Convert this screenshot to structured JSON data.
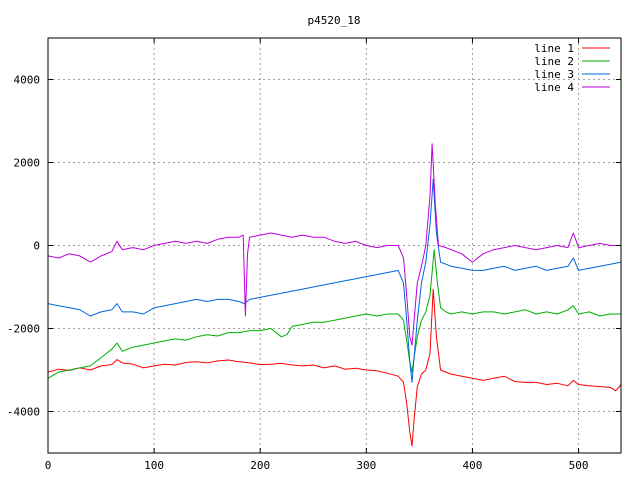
{
  "chart_data": {
    "type": "line",
    "title": "p4520_18",
    "xlabel": "",
    "ylabel": "",
    "xlim": [
      0,
      540
    ],
    "ylim": [
      -5000,
      5000
    ],
    "x_ticks": [
      0,
      100,
      200,
      300,
      400,
      500
    ],
    "y_ticks": [
      -4000,
      -2000,
      0,
      2000,
      4000
    ],
    "grid": true,
    "legend_position": "top-right",
    "series": [
      {
        "name": "line 1",
        "color": "#ff0000",
        "points": [
          [
            0,
            -3050
          ],
          [
            10,
            -2980
          ],
          [
            20,
            -3010
          ],
          [
            30,
            -2950
          ],
          [
            40,
            -3000
          ],
          [
            50,
            -2900
          ],
          [
            60,
            -2870
          ],
          [
            65,
            -2750
          ],
          [
            70,
            -2830
          ],
          [
            80,
            -2860
          ],
          [
            90,
            -2950
          ],
          [
            100,
            -2900
          ],
          [
            110,
            -2860
          ],
          [
            120,
            -2880
          ],
          [
            130,
            -2820
          ],
          [
            140,
            -2800
          ],
          [
            150,
            -2830
          ],
          [
            160,
            -2780
          ],
          [
            170,
            -2760
          ],
          [
            180,
            -2800
          ],
          [
            190,
            -2830
          ],
          [
            200,
            -2870
          ],
          [
            210,
            -2860
          ],
          [
            220,
            -2840
          ],
          [
            230,
            -2880
          ],
          [
            240,
            -2900
          ],
          [
            250,
            -2880
          ],
          [
            260,
            -2950
          ],
          [
            270,
            -2900
          ],
          [
            280,
            -2980
          ],
          [
            290,
            -2960
          ],
          [
            300,
            -3000
          ],
          [
            310,
            -3020
          ],
          [
            320,
            -3080
          ],
          [
            330,
            -3150
          ],
          [
            335,
            -3300
          ],
          [
            338,
            -3800
          ],
          [
            341,
            -4500
          ],
          [
            343,
            -4830
          ],
          [
            345,
            -4200
          ],
          [
            348,
            -3400
          ],
          [
            352,
            -3100
          ],
          [
            356,
            -3000
          ],
          [
            360,
            -2600
          ],
          [
            363,
            -1050
          ],
          [
            366,
            -2200
          ],
          [
            370,
            -3000
          ],
          [
            375,
            -3050
          ],
          [
            380,
            -3100
          ],
          [
            390,
            -3150
          ],
          [
            400,
            -3200
          ],
          [
            410,
            -3250
          ],
          [
            420,
            -3200
          ],
          [
            430,
            -3150
          ],
          [
            440,
            -3280
          ],
          [
            450,
            -3300
          ],
          [
            460,
            -3300
          ],
          [
            470,
            -3350
          ],
          [
            480,
            -3320
          ],
          [
            490,
            -3380
          ],
          [
            495,
            -3250
          ],
          [
            500,
            -3350
          ],
          [
            510,
            -3380
          ],
          [
            520,
            -3400
          ],
          [
            530,
            -3420
          ],
          [
            535,
            -3500
          ],
          [
            540,
            -3350
          ]
        ]
      },
      {
        "name": "line 2",
        "color": "#00b000",
        "points": [
          [
            0,
            -3200
          ],
          [
            10,
            -3050
          ],
          [
            20,
            -3000
          ],
          [
            30,
            -2950
          ],
          [
            40,
            -2900
          ],
          [
            50,
            -2700
          ],
          [
            60,
            -2500
          ],
          [
            65,
            -2350
          ],
          [
            70,
            -2550
          ],
          [
            80,
            -2450
          ],
          [
            90,
            -2400
          ],
          [
            100,
            -2350
          ],
          [
            110,
            -2300
          ],
          [
            120,
            -2250
          ],
          [
            130,
            -2280
          ],
          [
            140,
            -2200
          ],
          [
            150,
            -2150
          ],
          [
            160,
            -2180
          ],
          [
            170,
            -2100
          ],
          [
            180,
            -2100
          ],
          [
            190,
            -2050
          ],
          [
            200,
            -2050
          ],
          [
            210,
            -2000
          ],
          [
            220,
            -2200
          ],
          [
            225,
            -2150
          ],
          [
            230,
            -1950
          ],
          [
            240,
            -1900
          ],
          [
            250,
            -1850
          ],
          [
            260,
            -1850
          ],
          [
            270,
            -1800
          ],
          [
            280,
            -1750
          ],
          [
            290,
            -1700
          ],
          [
            300,
            -1650
          ],
          [
            310,
            -1700
          ],
          [
            320,
            -1650
          ],
          [
            330,
            -1650
          ],
          [
            335,
            -1800
          ],
          [
            338,
            -2300
          ],
          [
            341,
            -2800
          ],
          [
            343,
            -3050
          ],
          [
            345,
            -2700
          ],
          [
            348,
            -2200
          ],
          [
            352,
            -1800
          ],
          [
            356,
            -1600
          ],
          [
            360,
            -1200
          ],
          [
            364,
            -100
          ],
          [
            367,
            -900
          ],
          [
            370,
            -1500
          ],
          [
            375,
            -1600
          ],
          [
            380,
            -1650
          ],
          [
            390,
            -1600
          ],
          [
            400,
            -1650
          ],
          [
            410,
            -1600
          ],
          [
            420,
            -1600
          ],
          [
            430,
            -1650
          ],
          [
            440,
            -1600
          ],
          [
            450,
            -1550
          ],
          [
            460,
            -1650
          ],
          [
            470,
            -1600
          ],
          [
            480,
            -1650
          ],
          [
            490,
            -1550
          ],
          [
            495,
            -1450
          ],
          [
            500,
            -1650
          ],
          [
            510,
            -1600
          ],
          [
            520,
            -1700
          ],
          [
            530,
            -1650
          ],
          [
            540,
            -1650
          ]
        ]
      },
      {
        "name": "line 3",
        "color": "#0066dd",
        "points": [
          [
            0,
            -1400
          ],
          [
            10,
            -1450
          ],
          [
            20,
            -1500
          ],
          [
            30,
            -1550
          ],
          [
            40,
            -1700
          ],
          [
            50,
            -1600
          ],
          [
            60,
            -1550
          ],
          [
            65,
            -1400
          ],
          [
            70,
            -1600
          ],
          [
            80,
            -1600
          ],
          [
            90,
            -1650
          ],
          [
            100,
            -1500
          ],
          [
            110,
            -1450
          ],
          [
            120,
            -1400
          ],
          [
            130,
            -1350
          ],
          [
            140,
            -1300
          ],
          [
            150,
            -1350
          ],
          [
            160,
            -1300
          ],
          [
            170,
            -1300
          ],
          [
            180,
            -1350
          ],
          [
            185,
            -1400
          ],
          [
            190,
            -1300
          ],
          [
            200,
            -1250
          ],
          [
            210,
            -1200
          ],
          [
            220,
            -1150
          ],
          [
            230,
            -1100
          ],
          [
            240,
            -1050
          ],
          [
            250,
            -1000
          ],
          [
            260,
            -950
          ],
          [
            270,
            -900
          ],
          [
            280,
            -850
          ],
          [
            290,
            -800
          ],
          [
            300,
            -750
          ],
          [
            310,
            -700
          ],
          [
            320,
            -650
          ],
          [
            330,
            -600
          ],
          [
            335,
            -900
          ],
          [
            338,
            -1800
          ],
          [
            341,
            -2800
          ],
          [
            343,
            -3300
          ],
          [
            345,
            -2700
          ],
          [
            348,
            -1800
          ],
          [
            352,
            -900
          ],
          [
            356,
            -400
          ],
          [
            360,
            500
          ],
          [
            363,
            1600
          ],
          [
            366,
            300
          ],
          [
            370,
            -400
          ],
          [
            380,
            -500
          ],
          [
            390,
            -550
          ],
          [
            400,
            -600
          ],
          [
            410,
            -600
          ],
          [
            420,
            -550
          ],
          [
            430,
            -500
          ],
          [
            440,
            -600
          ],
          [
            450,
            -550
          ],
          [
            460,
            -500
          ],
          [
            470,
            -600
          ],
          [
            480,
            -550
          ],
          [
            490,
            -500
          ],
          [
            495,
            -300
          ],
          [
            500,
            -600
          ],
          [
            510,
            -550
          ],
          [
            520,
            -500
          ],
          [
            530,
            -450
          ],
          [
            540,
            -400
          ]
        ]
      },
      {
        "name": "line 4",
        "color": "#bb00dd",
        "points": [
          [
            0,
            -250
          ],
          [
            10,
            -300
          ],
          [
            20,
            -200
          ],
          [
            30,
            -250
          ],
          [
            40,
            -400
          ],
          [
            50,
            -250
          ],
          [
            60,
            -150
          ],
          [
            65,
            100
          ],
          [
            70,
            -100
          ],
          [
            80,
            -50
          ],
          [
            90,
            -100
          ],
          [
            100,
            0
          ],
          [
            110,
            50
          ],
          [
            120,
            100
          ],
          [
            130,
            50
          ],
          [
            140,
            100
          ],
          [
            150,
            50
          ],
          [
            160,
            150
          ],
          [
            170,
            200
          ],
          [
            180,
            200
          ],
          [
            184,
            250
          ],
          [
            186,
            -1700
          ],
          [
            188,
            -200
          ],
          [
            190,
            200
          ],
          [
            200,
            250
          ],
          [
            210,
            300
          ],
          [
            220,
            250
          ],
          [
            230,
            200
          ],
          [
            240,
            250
          ],
          [
            250,
            200
          ],
          [
            260,
            200
          ],
          [
            270,
            100
          ],
          [
            280,
            50
          ],
          [
            290,
            100
          ],
          [
            300,
            0
          ],
          [
            310,
            -50
          ],
          [
            320,
            0
          ],
          [
            330,
            0
          ],
          [
            335,
            -300
          ],
          [
            338,
            -1200
          ],
          [
            341,
            -2200
          ],
          [
            343,
            -2400
          ],
          [
            345,
            -1800
          ],
          [
            348,
            -900
          ],
          [
            352,
            -500
          ],
          [
            356,
            0
          ],
          [
            360,
            1200
          ],
          [
            362,
            2450
          ],
          [
            365,
            1000
          ],
          [
            368,
            0
          ],
          [
            375,
            -50
          ],
          [
            380,
            -100
          ],
          [
            390,
            -200
          ],
          [
            400,
            -400
          ],
          [
            410,
            -200
          ],
          [
            420,
            -100
          ],
          [
            430,
            -50
          ],
          [
            440,
            0
          ],
          [
            450,
            -50
          ],
          [
            460,
            -100
          ],
          [
            470,
            -50
          ],
          [
            480,
            0
          ],
          [
            490,
            -50
          ],
          [
            495,
            300
          ],
          [
            500,
            -50
          ],
          [
            510,
            0
          ],
          [
            520,
            50
          ],
          [
            530,
            0
          ],
          [
            540,
            0
          ]
        ]
      }
    ]
  }
}
